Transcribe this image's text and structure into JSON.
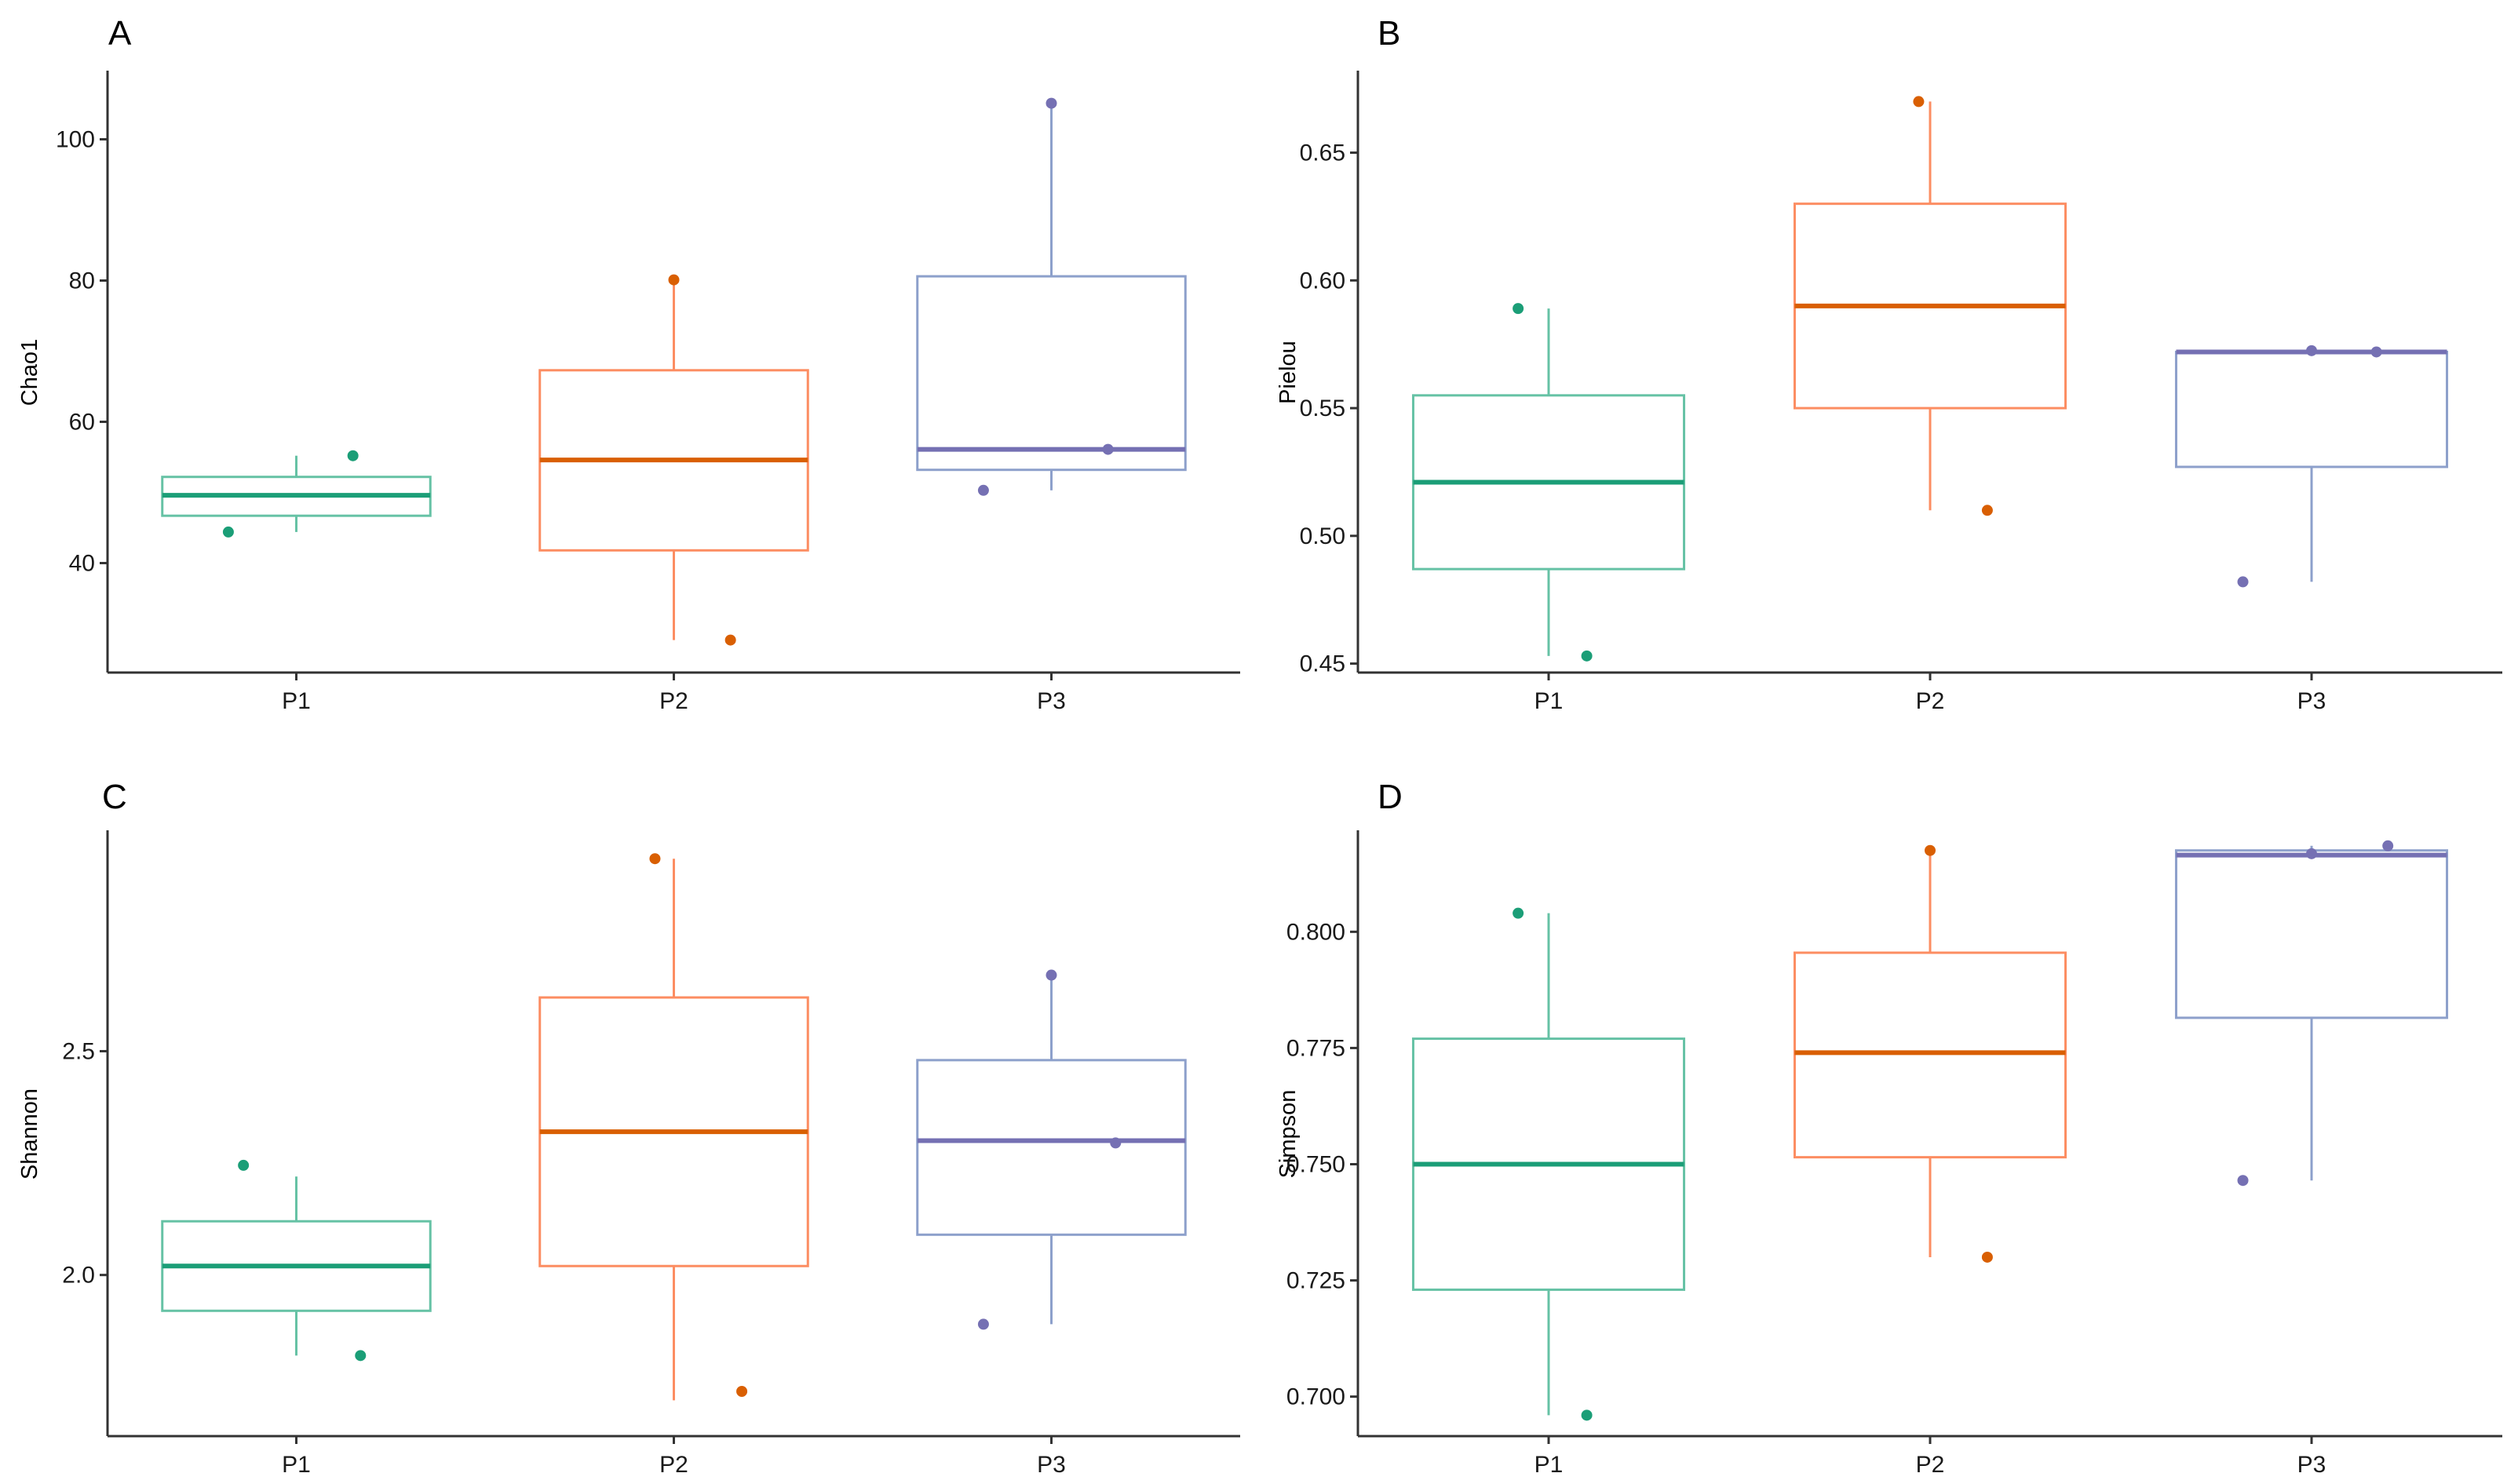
{
  "chart_data": [
    {
      "type": "box",
      "panel": "A",
      "ylabel": "Chao1",
      "xlabel": "",
      "ylim": [
        24.5,
        109.5
      ],
      "yticks": [
        40,
        60,
        80,
        100
      ],
      "ytick_labels": [
        "40",
        "60",
        "80",
        "100"
      ],
      "categories": [
        "P1",
        "P2",
        "P3"
      ],
      "colors": [
        "#1b9e77",
        "#d95f02",
        "#7570b3"
      ],
      "box_colors": [
        "#66c2a5",
        "#fc8d62",
        "#8da0cb"
      ],
      "boxes": [
        {
          "category": "P1",
          "whisker_low": 44.4,
          "q1": 46.7,
          "median": 49.6,
          "q3": 52.2,
          "whisker_high": 55.2
        },
        {
          "category": "P2",
          "whisker_low": 29.1,
          "q1": 41.8,
          "median": 54.6,
          "q3": 67.3,
          "whisker_high": 80.1
        },
        {
          "category": "P3",
          "whisker_low": 50.3,
          "q1": 53.2,
          "median": 56.1,
          "q3": 80.6,
          "whisker_high": 105.1
        }
      ],
      "points": [
        {
          "category": "P1",
          "offset": -0.18,
          "value": 44.4
        },
        {
          "category": "P1",
          "offset": 0.15,
          "value": 55.2
        },
        {
          "category": "P2",
          "offset": 0.0,
          "value": 80.1
        },
        {
          "category": "P2",
          "offset": 0.15,
          "value": 29.1
        },
        {
          "category": "P3",
          "offset": -0.18,
          "value": 50.3
        },
        {
          "category": "P3",
          "offset": 0.0,
          "value": 105.1
        },
        {
          "category": "P3",
          "offset": 0.15,
          "value": 56.1
        }
      ]
    },
    {
      "type": "box",
      "panel": "B",
      "ylabel": "Pielou",
      "xlabel": "",
      "ylim": [
        0.4465,
        0.6815
      ],
      "yticks": [
        0.45,
        0.5,
        0.55,
        0.6,
        0.65
      ],
      "ytick_labels": [
        "0.45",
        "0.50",
        "0.55",
        "0.60",
        "0.65"
      ],
      "categories": [
        "P1",
        "P2",
        "P3"
      ],
      "colors": [
        "#1b9e77",
        "#d95f02",
        "#7570b3"
      ],
      "box_colors": [
        "#66c2a5",
        "#fc8d62",
        "#8da0cb"
      ],
      "boxes": [
        {
          "category": "P1",
          "whisker_low": 0.453,
          "q1": 0.487,
          "median": 0.521,
          "q3": 0.555,
          "whisker_high": 0.589
        },
        {
          "category": "P2",
          "whisker_low": 0.51,
          "q1": 0.55,
          "median": 0.59,
          "q3": 0.63,
          "whisker_high": 0.67
        },
        {
          "category": "P3",
          "whisker_low": 0.482,
          "q1": 0.527,
          "median": 0.572,
          "q3": 0.572,
          "whisker_high": 0.572
        }
      ],
      "points": [
        {
          "category": "P1",
          "offset": -0.08,
          "value": 0.589
        },
        {
          "category": "P1",
          "offset": 0.1,
          "value": 0.453
        },
        {
          "category": "P2",
          "offset": -0.03,
          "value": 0.67
        },
        {
          "category": "P2",
          "offset": 0.15,
          "value": 0.51
        },
        {
          "category": "P3",
          "offset": -0.18,
          "value": 0.482
        },
        {
          "category": "P3",
          "offset": 0.0,
          "value": 0.5725
        },
        {
          "category": "P3",
          "offset": 0.17,
          "value": 0.572
        }
      ]
    },
    {
      "type": "box",
      "panel": "C",
      "ylabel": "Shannon",
      "xlabel": "",
      "ylim": [
        1.64,
        2.99
      ],
      "yticks": [
        2.0,
        2.5
      ],
      "ytick_labels": [
        "2.0",
        "2.5"
      ],
      "categories": [
        "P1",
        "P2",
        "P3"
      ],
      "colors": [
        "#1b9e77",
        "#d95f02",
        "#7570b3"
      ],
      "box_colors": [
        "#66c2a5",
        "#fc8d62",
        "#8da0cb"
      ],
      "boxes": [
        {
          "category": "P1",
          "whisker_low": 1.82,
          "q1": 1.92,
          "median": 2.02,
          "q3": 2.12,
          "whisker_high": 2.22
        },
        {
          "category": "P2",
          "whisker_low": 1.72,
          "q1": 2.02,
          "median": 2.32,
          "q3": 2.62,
          "whisker_high": 2.93
        },
        {
          "category": "P3",
          "whisker_low": 1.89,
          "q1": 2.09,
          "median": 2.3,
          "q3": 2.48,
          "whisker_high": 2.67
        }
      ],
      "points": [
        {
          "category": "P1",
          "offset": -0.14,
          "value": 2.245
        },
        {
          "category": "P1",
          "offset": 0.17,
          "value": 1.82
        },
        {
          "category": "P2",
          "offset": -0.05,
          "value": 2.93
        },
        {
          "category": "P2",
          "offset": 0.18,
          "value": 1.74
        },
        {
          "category": "P3",
          "offset": -0.18,
          "value": 1.89
        },
        {
          "category": "P3",
          "offset": 0.0,
          "value": 2.67
        },
        {
          "category": "P3",
          "offset": 0.17,
          "value": 2.295
        }
      ]
    },
    {
      "type": "box",
      "panel": "D",
      "ylabel": "Simpson",
      "xlabel": "",
      "ylim": [
        0.6915,
        0.8215
      ],
      "yticks": [
        0.7,
        0.725,
        0.75,
        0.775,
        0.8
      ],
      "ytick_labels": [
        "0.700",
        "0.725",
        "0.750",
        "0.775",
        "0.800"
      ],
      "categories": [
        "P1",
        "P2",
        "P3"
      ],
      "colors": [
        "#1b9e77",
        "#d95f02",
        "#7570b3"
      ],
      "box_colors": [
        "#66c2a5",
        "#fc8d62",
        "#8da0cb"
      ],
      "boxes": [
        {
          "category": "P1",
          "whisker_low": 0.696,
          "q1": 0.723,
          "median": 0.75,
          "q3": 0.777,
          "whisker_high": 0.804
        },
        {
          "category": "P2",
          "whisker_low": 0.73,
          "q1": 0.7515,
          "median": 0.774,
          "q3": 0.7955,
          "whisker_high": 0.8175
        },
        {
          "category": "P3",
          "whisker_low": 0.7465,
          "q1": 0.7815,
          "median": 0.8165,
          "q3": 0.8175,
          "whisker_high": 0.8185
        }
      ],
      "points": [
        {
          "category": "P1",
          "offset": -0.08,
          "value": 0.804
        },
        {
          "category": "P1",
          "offset": 0.1,
          "value": 0.696
        },
        {
          "category": "P2",
          "offset": 0.0,
          "value": 0.8175
        },
        {
          "category": "P2",
          "offset": 0.15,
          "value": 0.73
        },
        {
          "category": "P3",
          "offset": -0.18,
          "value": 0.7465
        },
        {
          "category": "P3",
          "offset": 0.0,
          "value": 0.8168
        },
        {
          "category": "P3",
          "offset": 0.2,
          "value": 0.8185
        }
      ]
    }
  ]
}
